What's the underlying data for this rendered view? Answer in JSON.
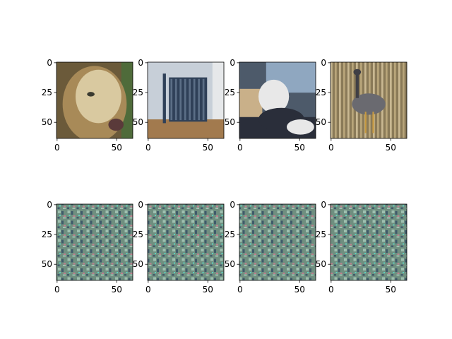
{
  "chart_data": [
    {
      "type": "image",
      "content": "golden retriever face",
      "colors": [
        "#6b5a3a",
        "#d9c9a0",
        "#a88a58",
        "#3a3a30",
        "#4f6b3a"
      ],
      "xticks": [
        0,
        50
      ],
      "yticks": [
        0,
        25,
        50
      ],
      "xlim": [
        -0.5,
        63.5
      ],
      "ylim": [
        63.5,
        -0.5
      ]
    },
    {
      "type": "image",
      "content": "radiator",
      "colors": [
        "#c7cfd8",
        "#2f4058",
        "#a27a4e",
        "#e6e8ea",
        "#5b6e86"
      ],
      "xticks": [
        0,
        50
      ],
      "yticks": [
        0,
        25,
        50
      ],
      "xlim": [
        -0.5,
        63.5
      ],
      "ylim": [
        63.5,
        -0.5
      ]
    },
    {
      "type": "image",
      "content": "white poodle by window",
      "colors": [
        "#4d5a6a",
        "#e8e8e8",
        "#2a2e3a",
        "#c9b089",
        "#8fa7c0"
      ],
      "xticks": [
        0,
        50
      ],
      "yticks": [
        0,
        25,
        50
      ],
      "xlim": [
        -0.5,
        63.5
      ],
      "ylim": [
        63.5,
        -0.5
      ]
    },
    {
      "type": "image",
      "content": "bird in grass",
      "colors": [
        "#8a7a58",
        "#6a6a70",
        "#b8a57a",
        "#3f3f45",
        "#c9b892"
      ],
      "xticks": [
        0,
        50
      ],
      "yticks": [
        0,
        25,
        50
      ],
      "xlim": [
        -0.5,
        63.5
      ],
      "ylim": [
        63.5,
        -0.5
      ]
    },
    {
      "type": "image",
      "content": "repeating texture",
      "colors": [
        "#6f8f80",
        "#9fc0b0",
        "#3f5a6a",
        "#5fd0c0",
        "#c08090"
      ],
      "xticks": [
        0,
        50
      ],
      "yticks": [
        0,
        25,
        50
      ],
      "xlim": [
        -0.5,
        63.5
      ],
      "ylim": [
        63.5,
        -0.5
      ]
    },
    {
      "type": "image",
      "content": "repeating texture",
      "colors": [
        "#6f8f80",
        "#9fc0b0",
        "#3f5a6a",
        "#5fd0c0",
        "#c08090"
      ],
      "xticks": [
        0,
        50
      ],
      "yticks": [
        0,
        25,
        50
      ],
      "xlim": [
        -0.5,
        63.5
      ],
      "ylim": [
        63.5,
        -0.5
      ]
    },
    {
      "type": "image",
      "content": "repeating texture",
      "colors": [
        "#6f8f80",
        "#9fc0b0",
        "#3f5a6a",
        "#5fd0c0",
        "#c08090"
      ],
      "xticks": [
        0,
        50
      ],
      "yticks": [
        0,
        25,
        50
      ],
      "xlim": [
        -0.5,
        63.5
      ],
      "ylim": [
        63.5,
        -0.5
      ]
    },
    {
      "type": "image",
      "content": "repeating texture",
      "colors": [
        "#6f8f80",
        "#9fc0b0",
        "#3f5a6a",
        "#5fd0c0",
        "#c08090"
      ],
      "xticks": [
        0,
        50
      ],
      "yticks": [
        0,
        25,
        50
      ],
      "xlim": [
        -0.5,
        63.5
      ],
      "ylim": [
        63.5,
        -0.5
      ]
    }
  ]
}
